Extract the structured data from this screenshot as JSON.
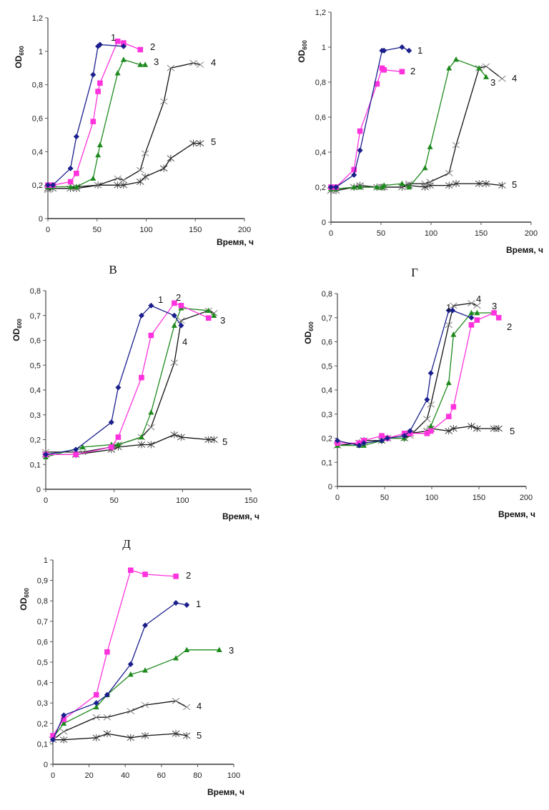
{
  "colors": {
    "s1": "#1a1f8c",
    "s2": "#ff33dd",
    "s3": "#1e8a1e",
    "s4": "#111111",
    "s5": "#111111"
  },
  "chart_data": [
    {
      "id": "A",
      "panel_label": "",
      "type": "line",
      "xlabel": "Время, ч",
      "ylabel": "OD",
      "ylabel_sub": "600",
      "xlim": [
        0,
        200
      ],
      "ylim": [
        0,
        1.2
      ],
      "xticks": [
        0,
        50,
        100,
        150,
        200
      ],
      "yticks": [
        0,
        0.2,
        0.4,
        0.6,
        0.8,
        1,
        1.2
      ],
      "ytick_labels": [
        "0",
        "0,2",
        "0,4",
        "0,6",
        "0,8",
        "1",
        "1,2"
      ],
      "series": [
        {
          "name": "1",
          "marker": "diamond",
          "x": [
            0,
            5,
            23,
            29,
            46,
            51,
            53,
            77
          ],
          "y": [
            0.2,
            0.2,
            0.3,
            0.49,
            0.86,
            1.03,
            1.04,
            1.03
          ]
        },
        {
          "name": "2",
          "marker": "square",
          "x": [
            0,
            5,
            23,
            29,
            46,
            51,
            53,
            71,
            77,
            94
          ],
          "y": [
            0.2,
            0.2,
            0.22,
            0.27,
            0.58,
            0.76,
            0.81,
            1.06,
            1.05,
            1.01
          ]
        },
        {
          "name": "3",
          "marker": "triangle",
          "x": [
            0,
            5,
            23,
            29,
            46,
            51,
            53,
            71,
            77,
            94,
            99
          ],
          "y": [
            0.19,
            0.19,
            0.19,
            0.19,
            0.24,
            0.38,
            0.44,
            0.87,
            0.95,
            0.92,
            0.92
          ]
        },
        {
          "name": "4",
          "marker": "x",
          "x": [
            0,
            5,
            23,
            29,
            51,
            71,
            77,
            94,
            99,
            118,
            125,
            148,
            155
          ],
          "y": [
            0.17,
            0.18,
            0.18,
            0.19,
            0.2,
            0.24,
            0.23,
            0.29,
            0.39,
            0.7,
            0.9,
            0.93,
            0.92
          ]
        },
        {
          "name": "5",
          "marker": "star",
          "x": [
            0,
            5,
            23,
            29,
            51,
            71,
            77,
            94,
            99,
            118,
            125,
            148,
            155
          ],
          "y": [
            0.18,
            0.18,
            0.18,
            0.18,
            0.2,
            0.2,
            0.2,
            0.22,
            0.25,
            0.3,
            0.36,
            0.45,
            0.45
          ]
        }
      ]
    },
    {
      "id": "B",
      "panel_label": "",
      "type": "line",
      "xlabel": "Время, ч",
      "ylabel": "OD",
      "ylabel_sub": "600",
      "xlim": [
        0,
        200
      ],
      "ylim": [
        0,
        1.2
      ],
      "xticks": [
        0,
        50,
        100,
        150,
        200
      ],
      "yticks": [
        0,
        0.2,
        0.4,
        0.6,
        0.8,
        1,
        1.2
      ],
      "ytick_labels": [
        "0",
        "0,2",
        "0,4",
        "0,6",
        "0,8",
        "1",
        "1,2"
      ],
      "series": [
        {
          "name": "1",
          "marker": "diamond",
          "x": [
            0,
            5,
            23,
            29,
            51,
            53,
            71,
            78
          ],
          "y": [
            0.2,
            0.2,
            0.27,
            0.41,
            0.98,
            0.98,
            1.0,
            0.98
          ]
        },
        {
          "name": "2",
          "marker": "square",
          "x": [
            0,
            5,
            23,
            29,
            46,
            51,
            53,
            71
          ],
          "y": [
            0.2,
            0.2,
            0.3,
            0.52,
            0.79,
            0.88,
            0.87,
            0.86
          ]
        },
        {
          "name": "3",
          "marker": "triangle",
          "x": [
            0,
            5,
            23,
            29,
            46,
            51,
            53,
            71,
            78,
            94,
            99,
            118,
            125,
            148,
            155
          ],
          "y": [
            0.19,
            0.19,
            0.2,
            0.2,
            0.2,
            0.2,
            0.21,
            0.22,
            0.2,
            0.31,
            0.43,
            0.88,
            0.93,
            0.88,
            0.83
          ]
        },
        {
          "name": "4",
          "marker": "x",
          "x": [
            0,
            5,
            23,
            29,
            46,
            51,
            53,
            71,
            78,
            94,
            99,
            118,
            125,
            148,
            155,
            171
          ],
          "y": [
            0.18,
            0.18,
            0.2,
            0.2,
            0.2,
            0.2,
            0.2,
            0.2,
            0.22,
            0.22,
            0.23,
            0.28,
            0.44,
            0.88,
            0.89,
            0.82
          ]
        },
        {
          "name": "5",
          "marker": "star",
          "x": [
            0,
            5,
            23,
            29,
            46,
            51,
            53,
            71,
            78,
            94,
            99,
            118,
            125,
            148,
            155,
            171
          ],
          "y": [
            0.18,
            0.18,
            0.2,
            0.21,
            0.2,
            0.2,
            0.2,
            0.2,
            0.21,
            0.2,
            0.21,
            0.21,
            0.22,
            0.22,
            0.22,
            0.21
          ]
        }
      ]
    },
    {
      "id": "C",
      "panel_label": "В",
      "type": "line",
      "xlabel": "Время, ч",
      "ylabel": "OD",
      "ylabel_sub": "600",
      "xlim": [
        0,
        150
      ],
      "ylim": [
        0,
        0.8
      ],
      "xticks": [
        0,
        50,
        100,
        150
      ],
      "yticks": [
        0,
        0.1,
        0.2,
        0.3,
        0.4,
        0.5,
        0.6,
        0.7,
        0.8
      ],
      "ytick_labels": [
        "0",
        "0,1",
        "0,2",
        "0,3",
        "0,4",
        "0,5",
        "0,6",
        "0,7",
        "0,8"
      ],
      "series": [
        {
          "name": "1",
          "marker": "diamond",
          "x": [
            0,
            22,
            48,
            53,
            70,
            77,
            94,
            99
          ],
          "y": [
            0.14,
            0.16,
            0.27,
            0.41,
            0.7,
            0.74,
            0.7,
            0.66
          ]
        },
        {
          "name": "2",
          "marker": "square",
          "x": [
            0,
            22,
            48,
            53,
            70,
            77,
            94,
            99,
            119
          ],
          "y": [
            0.14,
            0.14,
            0.17,
            0.21,
            0.45,
            0.62,
            0.75,
            0.74,
            0.69
          ]
        },
        {
          "name": "3",
          "marker": "triangle",
          "x": [
            0,
            27,
            48,
            53,
            70,
            77,
            94,
            99,
            119,
            123
          ],
          "y": [
            0.13,
            0.17,
            0.18,
            0.18,
            0.21,
            0.31,
            0.66,
            0.73,
            0.72,
            0.7
          ]
        },
        {
          "name": "4",
          "marker": "x",
          "x": [
            0,
            27,
            48,
            53,
            70,
            77,
            94,
            99,
            119,
            123
          ],
          "y": [
            0.15,
            0.15,
            0.17,
            0.18,
            0.21,
            0.25,
            0.51,
            0.68,
            0.72,
            0.71
          ]
        },
        {
          "name": "5",
          "marker": "star",
          "x": [
            0,
            22,
            48,
            53,
            70,
            77,
            94,
            99,
            119,
            123
          ],
          "y": [
            0.14,
            0.14,
            0.16,
            0.17,
            0.18,
            0.18,
            0.22,
            0.21,
            0.2,
            0.2
          ]
        }
      ]
    },
    {
      "id": "D",
      "panel_label": "Г",
      "type": "line",
      "xlabel": "Время, ч",
      "ylabel": "OD",
      "ylabel_sub": "600",
      "xlim": [
        0,
        200
      ],
      "ylim": [
        0,
        0.8
      ],
      "xticks": [
        0,
        50,
        100,
        150,
        200
      ],
      "yticks": [
        0,
        0.1,
        0.2,
        0.3,
        0.4,
        0.5,
        0.6,
        0.7,
        0.8
      ],
      "ytick_labels": [
        "0",
        "0,1",
        "0,2",
        "0,3",
        "0,4",
        "0,5",
        "0,6",
        "0,7",
        "0,8"
      ],
      "series": [
        {
          "name": "1",
          "marker": "diamond",
          "x": [
            0,
            23,
            28,
            47,
            53,
            71,
            77,
            95,
            99,
            118,
            122,
            142
          ],
          "y": [
            0.19,
            0.17,
            0.18,
            0.19,
            0.2,
            0.21,
            0.23,
            0.36,
            0.47,
            0.73,
            0.73,
            0.7
          ]
        },
        {
          "name": "2",
          "marker": "square",
          "x": [
            0,
            23,
            28,
            47,
            53,
            71,
            77,
            95,
            99,
            118,
            123,
            142,
            148,
            166,
            171
          ],
          "y": [
            0.18,
            0.18,
            0.19,
            0.21,
            0.2,
            0.22,
            0.22,
            0.22,
            0.23,
            0.29,
            0.33,
            0.67,
            0.69,
            0.72,
            0.7
          ]
        },
        {
          "name": "3",
          "marker": "triangle",
          "x": [
            0,
            23,
            28,
            47,
            53,
            71,
            77,
            95,
            99,
            118,
            123,
            142,
            148,
            166
          ],
          "y": [
            0.17,
            0.17,
            0.17,
            0.19,
            0.2,
            0.2,
            0.22,
            0.22,
            0.25,
            0.43,
            0.63,
            0.72,
            0.72,
            0.72
          ]
        },
        {
          "name": "4",
          "marker": "x",
          "x": [
            0,
            23,
            28,
            47,
            53,
            71,
            77,
            95,
            99,
            118,
            123,
            142,
            148
          ],
          "y": [
            0.17,
            0.18,
            0.19,
            0.19,
            0.2,
            0.2,
            0.21,
            0.28,
            0.34,
            0.67,
            0.75,
            0.76,
            0.75
          ]
        },
        {
          "name": "5",
          "marker": "star",
          "x": [
            0,
            23,
            28,
            47,
            53,
            71,
            77,
            95,
            99,
            118,
            123,
            142,
            148,
            166,
            171
          ],
          "y": [
            0.17,
            0.18,
            0.19,
            0.19,
            0.2,
            0.2,
            0.22,
            0.23,
            0.24,
            0.23,
            0.24,
            0.25,
            0.24,
            0.24,
            0.24
          ]
        }
      ]
    },
    {
      "id": "E",
      "panel_label": "Д",
      "type": "line",
      "xlabel": "Время, ч",
      "ylabel": "OD",
      "ylabel_sub": "600",
      "xlim": [
        0,
        100
      ],
      "ylim": [
        0,
        1
      ],
      "xticks": [
        0,
        20,
        40,
        60,
        80,
        100
      ],
      "yticks": [
        0,
        0.1,
        0.2,
        0.3,
        0.4,
        0.5,
        0.6,
        0.7,
        0.8,
        0.9,
        1
      ],
      "ytick_labels": [
        "0",
        "0,1",
        "0,2",
        "0,3",
        "0,4",
        "0,5",
        "0,6",
        "0,7",
        "0,8",
        "0,9",
        "1"
      ],
      "series": [
        {
          "name": "1",
          "marker": "diamond",
          "x": [
            0,
            6,
            24,
            30,
            43,
            51,
            68,
            74
          ],
          "y": [
            0.12,
            0.24,
            0.3,
            0.34,
            0.49,
            0.68,
            0.79,
            0.78
          ]
        },
        {
          "name": "2",
          "marker": "square",
          "x": [
            0,
            6,
            24,
            30,
            43,
            51,
            68
          ],
          "y": [
            0.14,
            0.22,
            0.34,
            0.55,
            0.95,
            0.93,
            0.92
          ]
        },
        {
          "name": "3",
          "marker": "triangle",
          "x": [
            0,
            6,
            24,
            30,
            43,
            51,
            68,
            74,
            92
          ],
          "y": [
            0.13,
            0.2,
            0.28,
            0.34,
            0.44,
            0.46,
            0.52,
            0.56,
            0.56
          ]
        },
        {
          "name": "4",
          "marker": "x",
          "x": [
            0,
            6,
            24,
            30,
            43,
            51,
            68,
            74
          ],
          "y": [
            0.12,
            0.16,
            0.23,
            0.23,
            0.26,
            0.29,
            0.31,
            0.28
          ]
        },
        {
          "name": "5",
          "marker": "star",
          "x": [
            0,
            6,
            24,
            30,
            43,
            51,
            68,
            74
          ],
          "y": [
            0.12,
            0.12,
            0.13,
            0.15,
            0.13,
            0.14,
            0.15,
            0.14
          ]
        }
      ]
    }
  ]
}
